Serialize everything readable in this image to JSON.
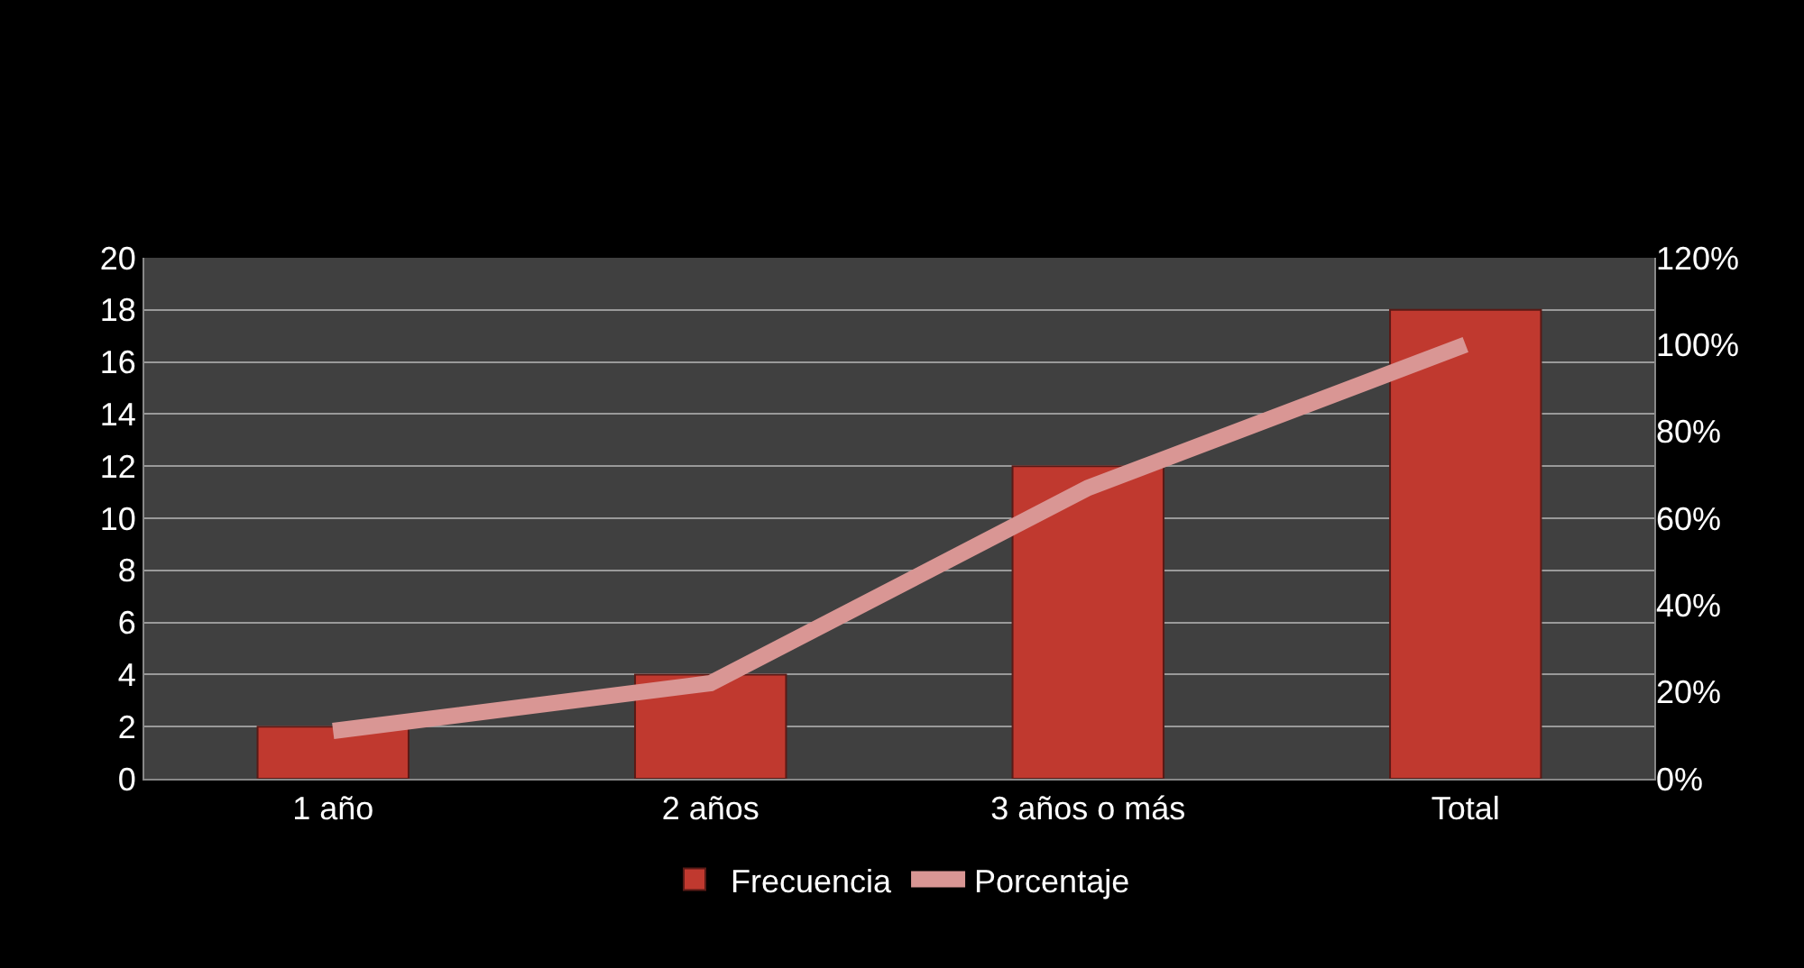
{
  "chart_data": {
    "type": "bar",
    "categories": [
      "1 año",
      "2 años",
      "3 años o más",
      "Total"
    ],
    "series": [
      {
        "name": "Frecuencia",
        "color": "#c0392f",
        "values": [
          2,
          4,
          12,
          18
        ]
      },
      {
        "name": "Porcentaje",
        "type": "line",
        "axis": "y2",
        "color": "#d99694",
        "values": [
          11,
          22,
          67,
          100
        ]
      }
    ],
    "ylim": [
      0,
      20
    ],
    "yticks": [
      0,
      2,
      4,
      6,
      8,
      10,
      12,
      14,
      16,
      18,
      20
    ],
    "y2lim": [
      0,
      120
    ],
    "y2ticks": [
      {
        "value": 0,
        "label": "0%"
      },
      {
        "value": 20,
        "label": "20%"
      },
      {
        "value": 40,
        "label": "40%"
      },
      {
        "value": 60,
        "label": "60%"
      },
      {
        "value": 80,
        "label": "80%"
      },
      {
        "value": 100,
        "label": "100%"
      },
      {
        "value": 120,
        "label": "120%"
      }
    ],
    "grid": "y",
    "legend": "bottom",
    "marker": "none",
    "line_style": "solid"
  }
}
